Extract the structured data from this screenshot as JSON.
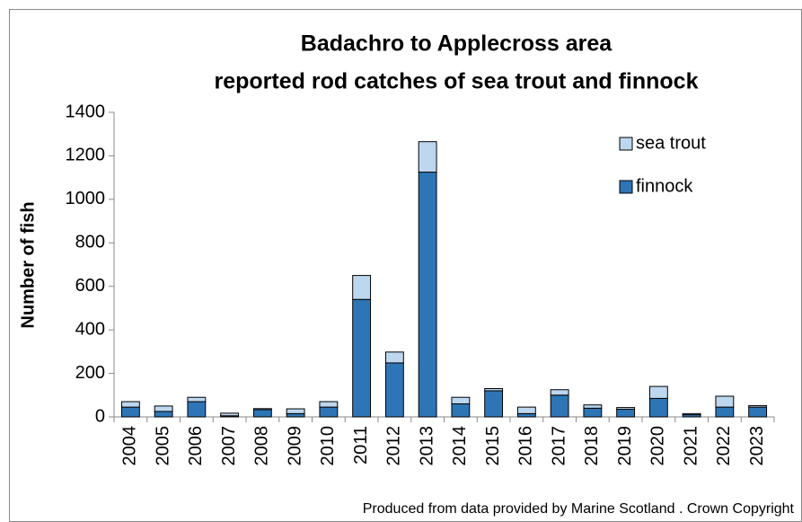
{
  "chart_data": {
    "type": "stacked_bar",
    "title": [
      "Badachro to Applecross area",
      "reported rod catches of sea trout and finnock"
    ],
    "ylabel": "Number of fish",
    "source": "Produced from data provided by Marine Scotland . Crown Copyright",
    "categories": [
      "2004",
      "2005",
      "2006",
      "2007",
      "2008",
      "2009",
      "2010",
      "2011",
      "2012",
      "2013",
      "2014",
      "2015",
      "2016",
      "2017",
      "2018",
      "2019",
      "2020",
      "2021",
      "2022",
      "2023"
    ],
    "series": [
      {
        "name": "finnock",
        "color": "#2e75b6",
        "values": [
          45,
          25,
          70,
          5,
          33,
          15,
          45,
          540,
          248,
          1125,
          60,
          120,
          15,
          100,
          40,
          35,
          85,
          10,
          45,
          45
        ]
      },
      {
        "name": "sea trout",
        "color": "#bdd7ee",
        "values": [
          25,
          25,
          20,
          12,
          5,
          22,
          25,
          110,
          50,
          140,
          30,
          10,
          30,
          25,
          15,
          8,
          55,
          5,
          50,
          7
        ]
      }
    ],
    "ylim": [
      0,
      1400
    ],
    "yticks": [
      0,
      200,
      400,
      600,
      800,
      1000,
      1200,
      1400
    ],
    "legend": "upper right"
  }
}
